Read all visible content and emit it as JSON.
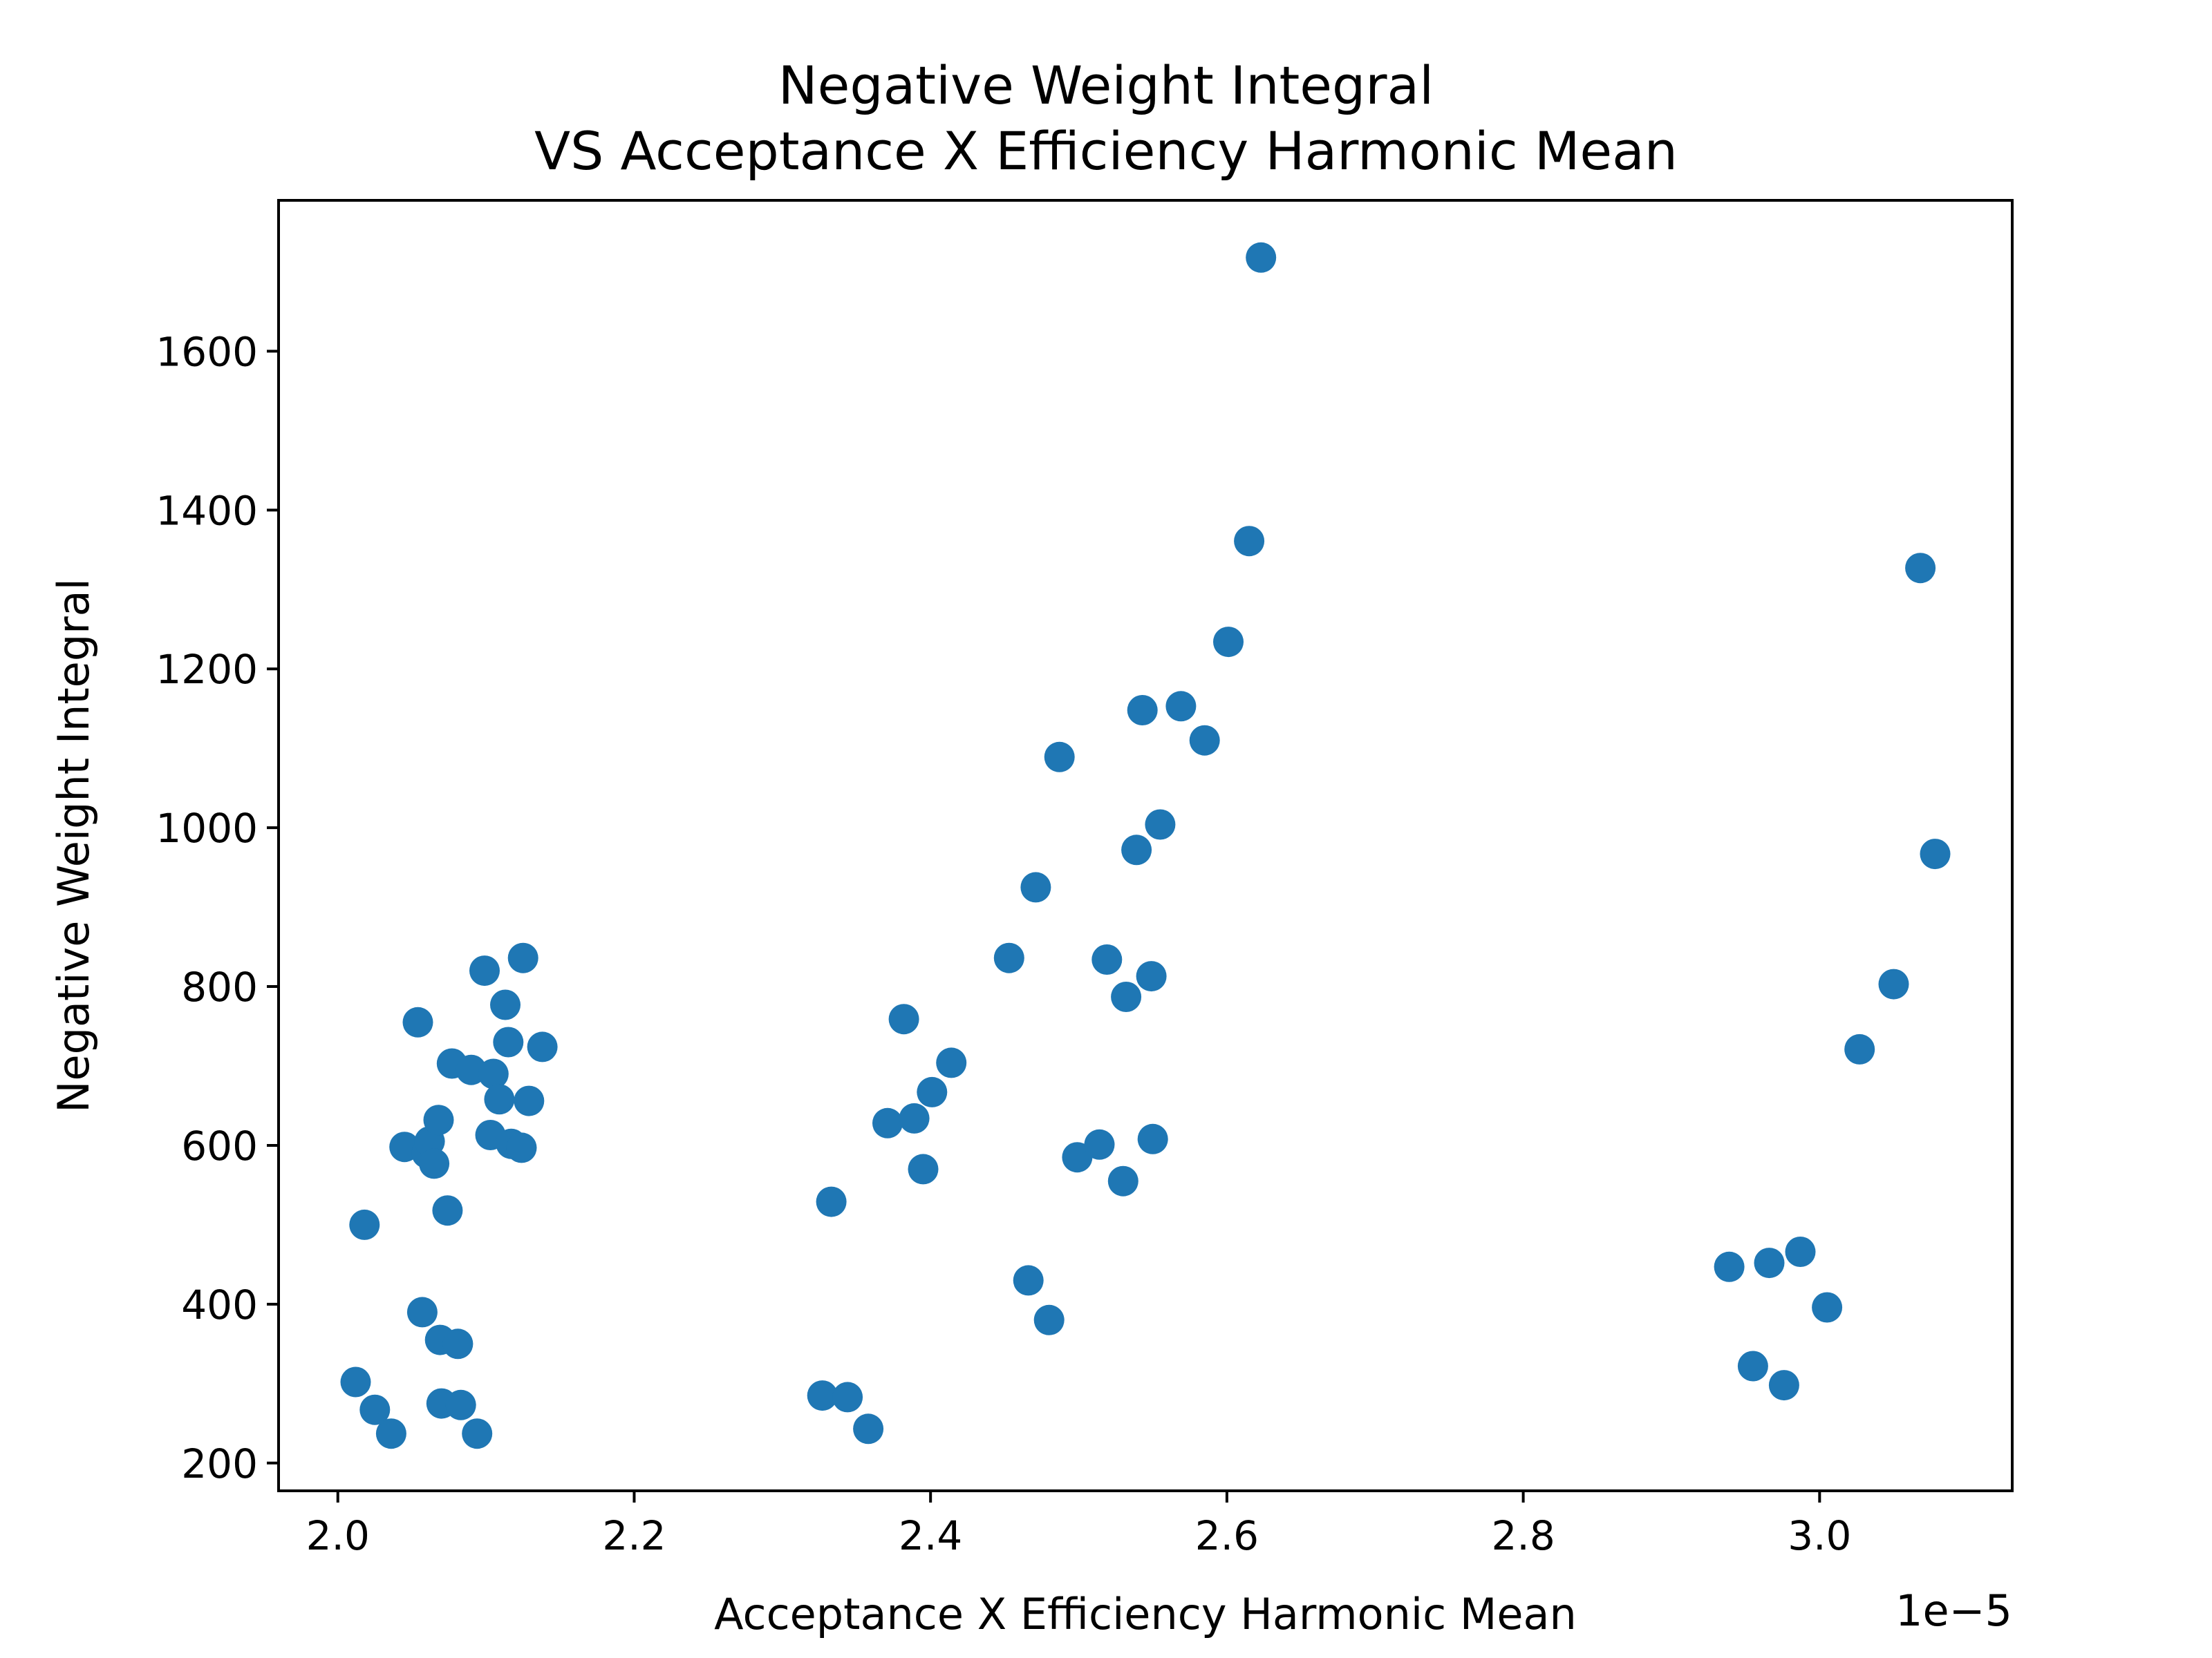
{
  "chart_data": {
    "type": "scatter",
    "title": "Negative Weight Integral\nVS Acceptance X Efficiency Harmonic Mean",
    "title_lines": [
      "Negative Weight Integral",
      "VS Acceptance X Efficiency Harmonic Mean"
    ],
    "xlabel": "Acceptance X Efficiency Harmonic Mean",
    "ylabel": "Negative Weight Integral",
    "x_offset_label": "1e−5",
    "x_scale_factor": 1e-05,
    "xlim": [
      1.96,
      3.13
    ],
    "ylim": [
      165,
      1790
    ],
    "xticks": [
      2.0,
      2.2,
      2.4,
      2.6,
      2.8,
      3.0
    ],
    "xtick_labels": [
      "2.0",
      "2.2",
      "2.4",
      "2.6",
      "2.8",
      "3.0"
    ],
    "yticks": [
      200,
      400,
      600,
      800,
      1000,
      1200,
      1400,
      1600
    ],
    "ytick_labels": [
      "200",
      "400",
      "600",
      "800",
      "1000",
      "1200",
      "1400",
      "1600"
    ],
    "grid": false,
    "marker_color": "#1f77b4",
    "series": [
      {
        "points": [
          [
            2.012,
            302
          ],
          [
            2.018,
            500
          ],
          [
            2.025,
            267
          ],
          [
            2.036,
            237
          ],
          [
            2.045,
            598
          ],
          [
            2.054,
            755
          ],
          [
            2.057,
            390
          ],
          [
            2.06,
            590
          ],
          [
            2.062,
            605
          ],
          [
            2.065,
            577
          ],
          [
            2.068,
            632
          ],
          [
            2.069,
            355
          ],
          [
            2.07,
            275
          ],
          [
            2.074,
            518
          ],
          [
            2.077,
            703
          ],
          [
            2.081,
            350
          ],
          [
            2.083,
            273
          ],
          [
            2.09,
            695
          ],
          [
            2.094,
            237
          ],
          [
            2.099,
            820
          ],
          [
            2.103,
            613
          ],
          [
            2.105,
            690
          ],
          [
            2.109,
            658
          ],
          [
            2.113,
            777
          ],
          [
            2.115,
            730
          ],
          [
            2.117,
            602
          ],
          [
            2.124,
            597
          ],
          [
            2.125,
            836
          ],
          [
            2.129,
            656
          ],
          [
            2.138,
            724
          ],
          [
            2.327,
            285
          ],
          [
            2.333,
            529
          ],
          [
            2.344,
            283
          ],
          [
            2.358,
            243
          ],
          [
            2.371,
            628
          ],
          [
            2.382,
            759
          ],
          [
            2.389,
            634
          ],
          [
            2.395,
            570
          ],
          [
            2.401,
            667
          ],
          [
            2.414,
            704
          ],
          [
            2.453,
            836
          ],
          [
            2.466,
            430
          ],
          [
            2.471,
            925
          ],
          [
            2.48,
            380
          ],
          [
            2.487,
            1089
          ],
          [
            2.499,
            585
          ],
          [
            2.514,
            601
          ],
          [
            2.519,
            834
          ],
          [
            2.53,
            555
          ],
          [
            2.532,
            787
          ],
          [
            2.539,
            972
          ],
          [
            2.543,
            1148
          ],
          [
            2.549,
            813
          ],
          [
            2.55,
            608
          ],
          [
            2.555,
            1004
          ],
          [
            2.569,
            1153
          ],
          [
            2.585,
            1110
          ],
          [
            2.601,
            1234
          ],
          [
            2.615,
            1361
          ],
          [
            2.623,
            1718
          ],
          [
            2.939,
            447
          ],
          [
            2.955,
            322
          ],
          [
            2.966,
            452
          ],
          [
            2.976,
            298
          ],
          [
            2.987,
            466
          ],
          [
            3.005,
            396
          ],
          [
            3.027,
            721
          ],
          [
            3.05,
            803
          ],
          [
            3.068,
            1327
          ],
          [
            3.078,
            967
          ]
        ]
      }
    ]
  }
}
